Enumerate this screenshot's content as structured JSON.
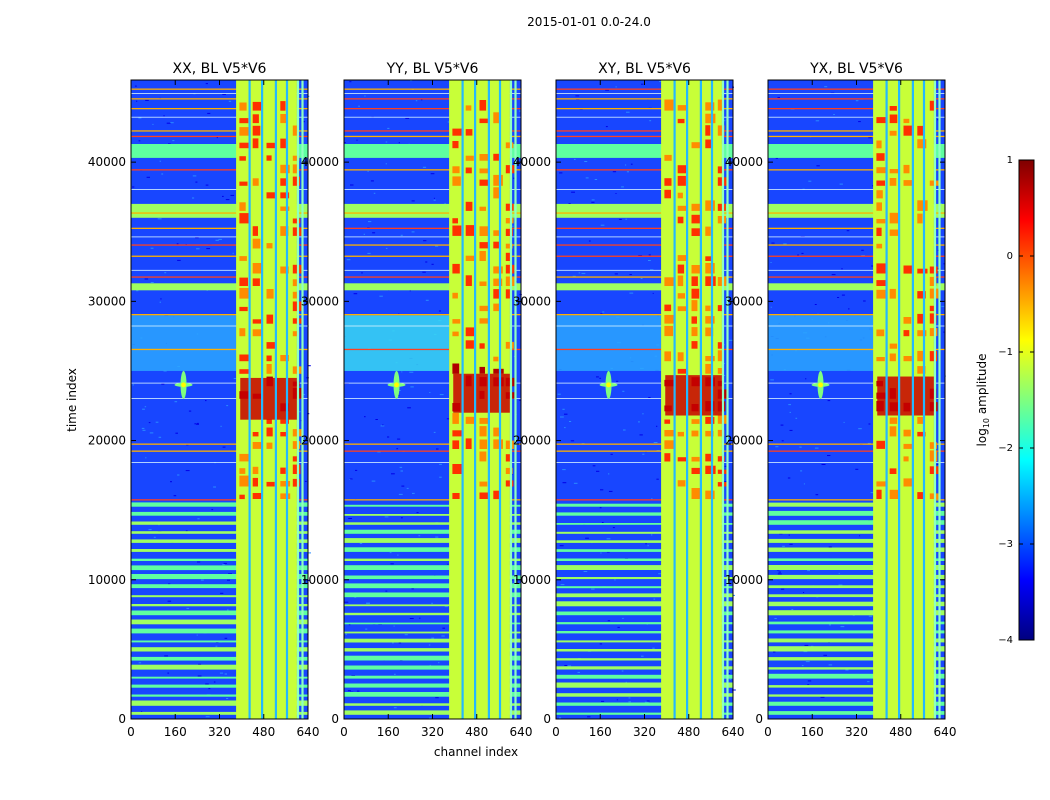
{
  "suptitle": "2015-01-01 0.0-24.0",
  "xlabel": "channel index",
  "ylabel": "time index",
  "colorbar": {
    "label": "log10 amplitude",
    "label_base": "log",
    "label_sub": "10",
    "label_rest": " amplitude",
    "range": [
      -4,
      1
    ],
    "ticks": [
      {
        "value": 1,
        "label": "1"
      },
      {
        "value": 0,
        "label": "0"
      },
      {
        "value": -1,
        "label": "−1"
      },
      {
        "value": -2,
        "label": "−2"
      },
      {
        "value": -3,
        "label": "−3"
      },
      {
        "value": -4,
        "label": "−4"
      }
    ],
    "colormap": "jet",
    "colors": [
      "#00007f",
      "#0000ff",
      "#007fff",
      "#00ffff",
      "#7fff7f",
      "#ffff00",
      "#ff7f00",
      "#ff0000",
      "#7f0000"
    ]
  },
  "chart_data": [
    {
      "type": "heatmap",
      "title": "XX, BL V5*V6",
      "xlabel": "channel index",
      "ylabel": "time index",
      "xlim": [
        0,
        640
      ],
      "ylim": [
        0,
        45900
      ],
      "xticks": [
        {
          "value": 0,
          "label": "0"
        },
        {
          "value": 160,
          "label": "160"
        },
        {
          "value": 320,
          "label": "320"
        },
        {
          "value": 480,
          "label": "480"
        },
        {
          "value": 640,
          "label": "640"
        }
      ],
      "yticks": [
        {
          "value": 0,
          "label": "0"
        },
        {
          "value": 10000,
          "label": "10000"
        },
        {
          "value": 20000,
          "label": "20000"
        },
        {
          "value": 30000,
          "label": "30000"
        },
        {
          "value": 40000,
          "label": "40000"
        }
      ],
      "show_yticklabels": true,
      "hot_band": [
        21500,
        24500
      ]
    },
    {
      "type": "heatmap",
      "title": "YY, BL V5*V6",
      "xlabel": "channel index",
      "ylabel": "time index",
      "xlim": [
        0,
        640
      ],
      "ylim": [
        0,
        45900
      ],
      "xticks": [
        {
          "value": 0,
          "label": "0"
        },
        {
          "value": 160,
          "label": "160"
        },
        {
          "value": 320,
          "label": "320"
        },
        {
          "value": 480,
          "label": "480"
        },
        {
          "value": 640,
          "label": "640"
        }
      ],
      "yticks": [
        {
          "value": 0,
          "label": "0"
        },
        {
          "value": 10000,
          "label": "10000"
        },
        {
          "value": 20000,
          "label": "20000"
        },
        {
          "value": 30000,
          "label": "30000"
        },
        {
          "value": 40000,
          "label": "40000"
        }
      ],
      "show_yticklabels": true,
      "hot_band": [
        22000,
        24800
      ]
    },
    {
      "type": "heatmap",
      "title": "XY, BL V5*V6",
      "xlabel": "channel index",
      "ylabel": "time index",
      "xlim": [
        0,
        640
      ],
      "ylim": [
        0,
        45900
      ],
      "xticks": [
        {
          "value": 0,
          "label": "0"
        },
        {
          "value": 160,
          "label": "160"
        },
        {
          "value": 320,
          "label": "320"
        },
        {
          "value": 480,
          "label": "480"
        },
        {
          "value": 640,
          "label": "640"
        }
      ],
      "yticks": [
        {
          "value": 0,
          "label": "0"
        },
        {
          "value": 10000,
          "label": "10000"
        },
        {
          "value": 20000,
          "label": "20000"
        },
        {
          "value": 30000,
          "label": "30000"
        },
        {
          "value": 40000,
          "label": "40000"
        }
      ],
      "show_yticklabels": true,
      "hot_band": [
        21800,
        24700
      ]
    },
    {
      "type": "heatmap",
      "title": "YX, BL V5*V6",
      "xlabel": "channel index",
      "ylabel": "time index",
      "xlim": [
        0,
        640
      ],
      "ylim": [
        0,
        45900
      ],
      "xticks": [
        {
          "value": 0,
          "label": "0"
        },
        {
          "value": 160,
          "label": "160"
        },
        {
          "value": 320,
          "label": "320"
        },
        {
          "value": 480,
          "label": "480"
        },
        {
          "value": 640,
          "label": "640"
        }
      ],
      "yticks": [
        {
          "value": 0,
          "label": "0"
        },
        {
          "value": 10000,
          "label": "10000"
        },
        {
          "value": 20000,
          "label": "20000"
        },
        {
          "value": 30000,
          "label": "30000"
        },
        {
          "value": 40000,
          "label": "40000"
        }
      ],
      "show_yticklabels": true,
      "hot_band": [
        21800,
        24600
      ]
    }
  ]
}
